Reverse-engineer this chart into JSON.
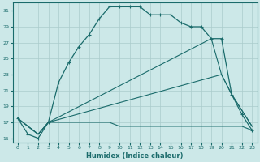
{
  "xlabel": "Humidex (Indice chaleur)",
  "xlim": [
    -0.5,
    23.5
  ],
  "ylim": [
    14.5,
    32
  ],
  "yticks": [
    15,
    17,
    19,
    21,
    23,
    25,
    27,
    29,
    31
  ],
  "xticks": [
    0,
    1,
    2,
    3,
    4,
    5,
    6,
    7,
    8,
    9,
    10,
    11,
    12,
    13,
    14,
    15,
    16,
    17,
    18,
    19,
    20,
    21,
    22,
    23
  ],
  "bg_color": "#cce8e8",
  "grid_color": "#aacccc",
  "line_color": "#1a6b6b",
  "line1_x": [
    0,
    1,
    2,
    3,
    4,
    5,
    6,
    7,
    8,
    9,
    10,
    11,
    12,
    13,
    14,
    15,
    16,
    17,
    18,
    19,
    20,
    21,
    22,
    23
  ],
  "line1_y": [
    17.5,
    15.5,
    15.0,
    17.0,
    22.0,
    24.5,
    26.5,
    28.0,
    30.0,
    31.5,
    31.5,
    31.5,
    31.5,
    30.5,
    30.5,
    30.5,
    29.5,
    29.0,
    29.0,
    27.5,
    27.5,
    20.5,
    18.0,
    16.0
  ],
  "line2_x": [
    0,
    2,
    3,
    19,
    20,
    21,
    22,
    23
  ],
  "line2_y": [
    17.5,
    15.5,
    17.0,
    27.5,
    23.0,
    20.5,
    18.5,
    16.5
  ],
  "line3_x": [
    0,
    2,
    3,
    20,
    21,
    22,
    23
  ],
  "line3_y": [
    17.5,
    15.5,
    17.0,
    23.0,
    20.5,
    18.5,
    16.5
  ],
  "line4_x": [
    0,
    2,
    3,
    4,
    5,
    6,
    7,
    8,
    9,
    10,
    11,
    12,
    13,
    14,
    15,
    16,
    17,
    18,
    19,
    20,
    21,
    22,
    23
  ],
  "line4_y": [
    17.5,
    15.5,
    17.0,
    17.0,
    17.0,
    17.0,
    17.0,
    17.0,
    17.0,
    16.5,
    16.5,
    16.5,
    16.5,
    16.5,
    16.5,
    16.5,
    16.5,
    16.5,
    16.5,
    16.5,
    16.5,
    16.5,
    16.0
  ]
}
